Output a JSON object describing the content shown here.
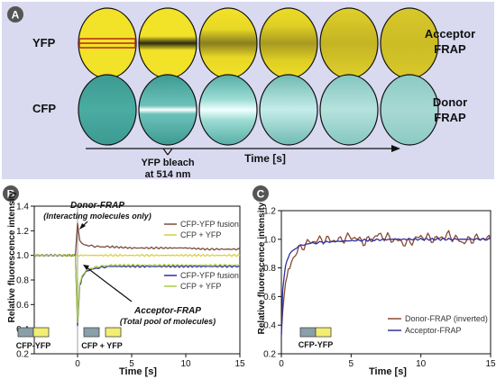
{
  "panel_a": {
    "letter": "A",
    "row_yfp_label": "YFP",
    "row_cfp_label": "CFP",
    "right_top_line1": "Acceptor",
    "right_top_line2": "FRAP",
    "right_bottom_line1": "Donor",
    "right_bottom_line2": "FRAP",
    "bleach_line1": "YFP bleach",
    "bleach_line2": "at 514 nm",
    "time_label": "Time [s]",
    "colors": {
      "background": "#d9d9f0",
      "yfp": "#f2e228",
      "yfp_bleach": "#b22a18",
      "cfp": "#46aaa0",
      "cfp_flash": "#e6ffff"
    }
  },
  "chart_data": [
    {
      "panel": "B",
      "type": "line",
      "xlabel": "Time [s]",
      "ylabel": "Relative fluorescence intensity",
      "xlim": [
        -4,
        15
      ],
      "ylim": [
        0.2,
        1.4
      ],
      "xticks": [
        0,
        5,
        10,
        15
      ],
      "yticks": [
        0.2,
        0.4,
        0.6,
        0.8,
        1.0,
        1.2,
        1.4
      ],
      "xtick_labels": [
        "0",
        "5",
        "10",
        "15"
      ],
      "ytick_labels": [
        "0.2",
        "0.4",
        "0.6",
        "0.8",
        "1.0",
        "1.2",
        "1.4"
      ],
      "grid": false,
      "bleach_x": 0,
      "series": [
        {
          "name": "CFP-YFP fusion",
          "group": "Donor-FRAP",
          "color": "#7a4a3c",
          "x": [
            -4,
            -2,
            -0.2,
            0,
            0.2,
            0.5,
            1,
            2,
            3,
            5,
            8,
            10,
            12,
            15
          ],
          "y": [
            1.0,
            1.0,
            1.0,
            1.26,
            1.12,
            1.09,
            1.08,
            1.07,
            1.07,
            1.06,
            1.06,
            1.06,
            1.05,
            1.05
          ]
        },
        {
          "name": "CFP + YFP",
          "group": "Donor-FRAP",
          "color": "#d8d040",
          "x": [
            -4,
            -2,
            0,
            2,
            5,
            8,
            10,
            12,
            15
          ],
          "y": [
            1.0,
            1.0,
            1.0,
            1.0,
            1.0,
            1.0,
            1.0,
            1.0,
            1.0
          ]
        },
        {
          "name": "CFP-YFP fusion",
          "group": "Acceptor-FRAP",
          "color": "#3030a0",
          "x": [
            -4,
            -2,
            -0.2,
            0,
            0.2,
            0.5,
            1,
            2,
            3,
            5,
            8,
            10,
            12,
            15
          ],
          "y": [
            1.0,
            1.0,
            1.0,
            0.43,
            0.75,
            0.84,
            0.88,
            0.9,
            0.91,
            0.91,
            0.91,
            0.91,
            0.91,
            0.91
          ]
        },
        {
          "name": "CFP + YFP",
          "group": "Acceptor-FRAP",
          "color": "#a8cc40",
          "x": [
            -4,
            -2,
            -0.2,
            0,
            0.2,
            0.5,
            1,
            2,
            3,
            5,
            8,
            10,
            12,
            15
          ],
          "y": [
            1.0,
            1.0,
            1.0,
            0.46,
            0.77,
            0.85,
            0.89,
            0.91,
            0.92,
            0.92,
            0.92,
            0.92,
            0.92,
            0.92
          ]
        }
      ],
      "legend_top": [
        "CFP-YFP fusion",
        "CFP + YFP"
      ],
      "legend_bottom": [
        "CFP-YFP fusion",
        "CFP + YFP"
      ],
      "annotations": {
        "donor_title": "Donor-FRAP",
        "donor_sub": "(Interacting molecules only)",
        "acceptor_title": "Acceptor-FRAP",
        "acceptor_sub": "(Total pool of molecules)"
      },
      "constructs": {
        "fusion": "CFP-YFP",
        "mix_cfp": "CFP",
        "mix_plus": " + ",
        "mix_yfp": "YFP"
      }
    },
    {
      "panel": "C",
      "type": "line",
      "xlabel": "Time [s]",
      "ylabel": "Relative fluorescence intensity",
      "xlim": [
        0,
        15
      ],
      "ylim": [
        0.2,
        1.2
      ],
      "xticks": [
        0,
        5,
        10,
        15
      ],
      "yticks": [
        0.2,
        0.4,
        0.6,
        0.8,
        1.0,
        1.2
      ],
      "xtick_labels": [
        "0",
        "5",
        "10",
        "15"
      ],
      "ytick_labels": [
        "0.2",
        "0.4",
        "0.6",
        "0.8",
        "1.0",
        "1.2"
      ],
      "grid": false,
      "series": [
        {
          "name": "Donor-FRAP (inverted)",
          "color": "#8a4a34",
          "x": [
            0,
            0.1,
            0.3,
            0.6,
            1,
            1.5,
            2,
            3,
            4,
            5,
            6,
            7,
            8,
            9,
            10,
            11,
            12,
            13,
            14,
            15
          ],
          "y": [
            0.34,
            0.5,
            0.7,
            0.82,
            0.9,
            0.95,
            0.98,
            1.0,
            0.99,
            1.02,
            0.98,
            1.03,
            1.0,
            0.97,
            1.02,
            1.0,
            1.03,
            0.98,
            1.01,
            1.0
          ]
        },
        {
          "name": "Acceptor-FRAP",
          "color": "#3030a0",
          "x": [
            0,
            0.1,
            0.3,
            0.6,
            1,
            1.5,
            2,
            3,
            5,
            8,
            10,
            12,
            15
          ],
          "y": [
            0.32,
            0.65,
            0.82,
            0.9,
            0.94,
            0.96,
            0.97,
            0.98,
            0.99,
            1.0,
            1.0,
            1.0,
            1.0
          ]
        }
      ],
      "constructs": {
        "fusion": "CFP-YFP"
      }
    }
  ]
}
